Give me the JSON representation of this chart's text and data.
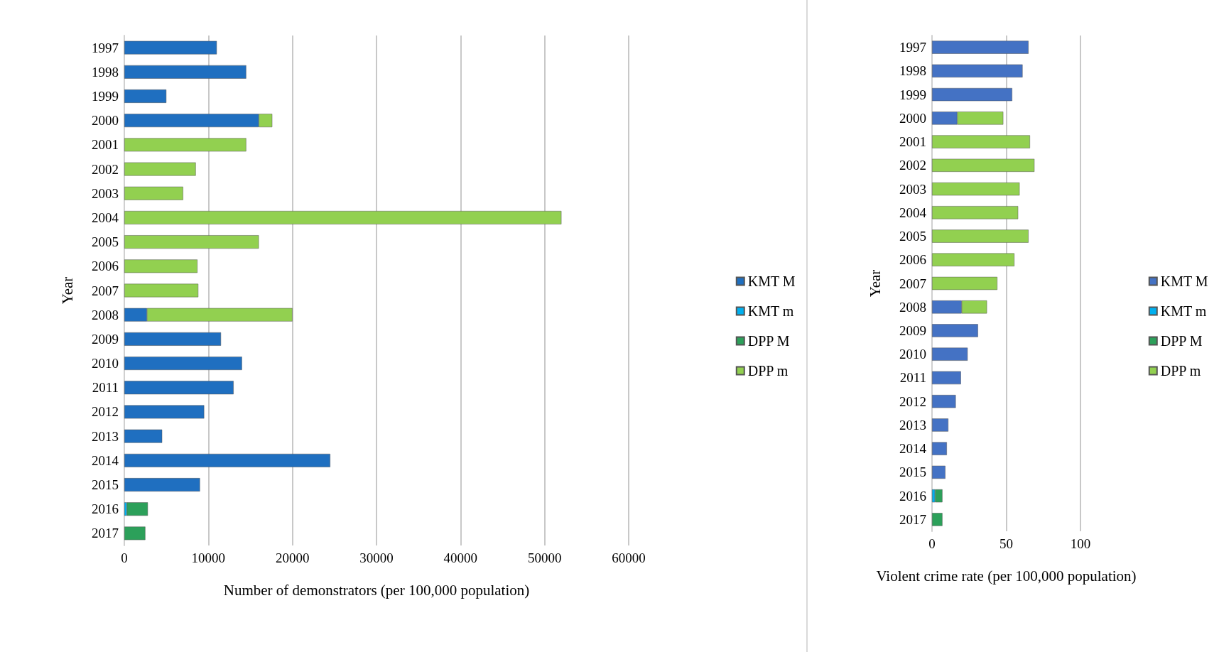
{
  "chart_data": [
    {
      "type": "bar",
      "orientation": "horizontal",
      "stacked": true,
      "xlabel": "Number of demonstrators (per 100,000 population)",
      "ylabel": "Year",
      "categories": [
        "1997",
        "1998",
        "1999",
        "2000",
        "2001",
        "2002",
        "2003",
        "2004",
        "2005",
        "2006",
        "2007",
        "2008",
        "2009",
        "2010",
        "2011",
        "2012",
        "2013",
        "2014",
        "2015",
        "2016",
        "2017"
      ],
      "series": [
        {
          "name": "KMT M",
          "color": "#1f6fc0",
          "values": [
            11000,
            14500,
            5000,
            16000,
            null,
            null,
            null,
            null,
            null,
            null,
            null,
            2700,
            11500,
            14000,
            13000,
            9500,
            4500,
            24500,
            9000,
            null,
            null
          ]
        },
        {
          "name": "KMT m",
          "color": "#00b0f0",
          "values": [
            null,
            null,
            null,
            null,
            null,
            null,
            null,
            null,
            null,
            null,
            null,
            null,
            null,
            null,
            null,
            null,
            null,
            null,
            null,
            300,
            null
          ]
        },
        {
          "name": "DPP M",
          "color": "#2ca05a",
          "values": [
            null,
            null,
            null,
            null,
            null,
            null,
            null,
            null,
            null,
            null,
            null,
            null,
            null,
            null,
            null,
            null,
            null,
            null,
            null,
            2500,
            2500
          ]
        },
        {
          "name": "DPP m",
          "color": "#92d050",
          "values": [
            null,
            null,
            null,
            1600,
            14500,
            8500,
            7000,
            52000,
            16000,
            8700,
            8800,
            17300,
            null,
            null,
            null,
            null,
            null,
            null,
            null,
            null,
            null
          ]
        }
      ],
      "xlim": [
        0,
        60000
      ],
      "xticks": [
        0,
        10000,
        20000,
        30000,
        40000,
        50000,
        60000
      ],
      "grid": "x",
      "legend": "right"
    },
    {
      "type": "bar",
      "orientation": "horizontal",
      "stacked": true,
      "xlabel": "Violent crime rate (per 100,000 population)",
      "ylabel": "Year",
      "categories": [
        "1997",
        "1998",
        "1999",
        "2000",
        "2001",
        "2002",
        "2003",
        "2004",
        "2005",
        "2006",
        "2007",
        "2008",
        "2009",
        "2010",
        "2011",
        "2012",
        "2013",
        "2014",
        "2015",
        "2016",
        "2017"
      ],
      "series": [
        {
          "name": "KMT M",
          "color": "#4472c4",
          "values": [
            65,
            61,
            54,
            17,
            null,
            null,
            null,
            null,
            null,
            null,
            null,
            20,
            31,
            24,
            19.5,
            16,
            11,
            10,
            9,
            null,
            null
          ]
        },
        {
          "name": "KMT m",
          "color": "#00b0f0",
          "values": [
            null,
            null,
            null,
            null,
            null,
            null,
            null,
            null,
            null,
            null,
            null,
            null,
            null,
            null,
            null,
            null,
            null,
            null,
            null,
            2,
            null
          ]
        },
        {
          "name": "DPP M",
          "color": "#2ca05a",
          "values": [
            null,
            null,
            null,
            null,
            null,
            null,
            null,
            null,
            null,
            null,
            null,
            null,
            null,
            null,
            null,
            null,
            null,
            null,
            null,
            5,
            7
          ]
        },
        {
          "name": "DPP m",
          "color": "#92d050",
          "values": [
            null,
            null,
            null,
            31,
            66,
            69,
            59,
            58,
            65,
            55.5,
            44,
            17,
            null,
            null,
            null,
            null,
            null,
            null,
            null,
            null,
            null
          ]
        }
      ],
      "xlim": [
        0,
        100
      ],
      "xticks": [
        0,
        50,
        100
      ],
      "grid": "x",
      "legend": "right"
    }
  ]
}
